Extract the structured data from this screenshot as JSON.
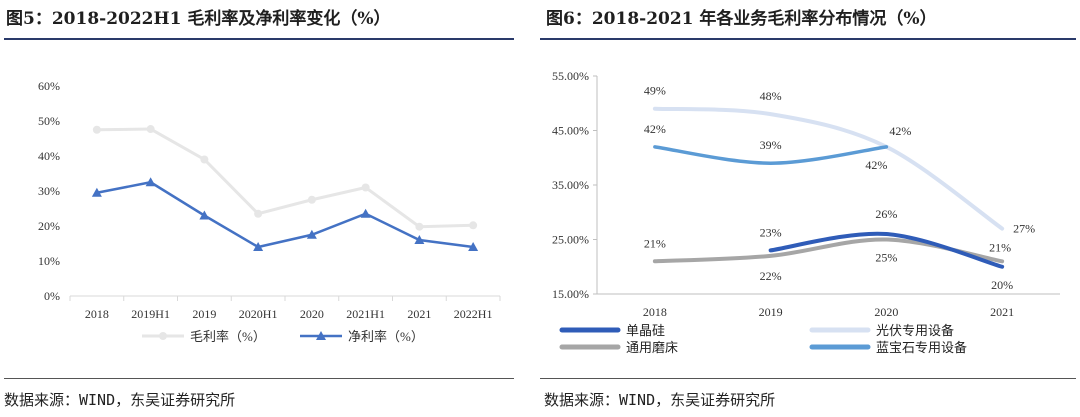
{
  "chart_data": [
    {
      "type": "line",
      "title": "图5：2018-2022H1 毛利率及净利率变化（%）",
      "categories": [
        "2018",
        "2019H1",
        "2019",
        "2020H1",
        "2020",
        "2021H1",
        "2021",
        "2022H1"
      ],
      "series": [
        {
          "name": "毛利率（%）",
          "values": [
            47.5,
            47.7,
            39.0,
            23.5,
            27.5,
            31.0,
            19.8,
            20.2
          ],
          "color": "#e6e6e6",
          "marker": "circle"
        },
        {
          "name": "净利率（%）",
          "values": [
            29.5,
            32.5,
            23.0,
            14.0,
            17.5,
            23.5,
            16.0,
            14.0
          ],
          "color": "#4472c4",
          "marker": "triangle"
        }
      ],
      "yticks": [
        "0%",
        "10%",
        "20%",
        "30%",
        "40%",
        "50%",
        "60%"
      ],
      "ylim": [
        0,
        60
      ],
      "legend": "bottom",
      "source": "数据来源：WIND，东吴证券研究所"
    },
    {
      "type": "line",
      "title": "图6：2018-2021 年各业务毛利率分布情况（%）",
      "categories": [
        "2018",
        "2019",
        "2020",
        "2021"
      ],
      "series": [
        {
          "name": "单晶硅",
          "values": [
            null,
            23,
            26,
            20
          ],
          "labels": [
            "",
            "23%",
            "26%",
            "20%"
          ],
          "color": "#2f5cb8"
        },
        {
          "name": "光伏专用设备",
          "values": [
            49,
            48,
            42,
            27
          ],
          "labels": [
            "49%",
            "48%",
            "42%",
            "27%"
          ],
          "color": "#d7e1f2"
        },
        {
          "name": "通用磨床",
          "values": [
            21,
            22,
            25,
            21
          ],
          "labels": [
            "21%",
            "22%",
            "25%",
            "21%"
          ],
          "color": "#a6a6a6"
        },
        {
          "name": "蓝宝石专用设备",
          "values": [
            42,
            39,
            42,
            null
          ],
          "labels": [
            "42%",
            "39%",
            "42%",
            ""
          ],
          "color": "#5b9bd5"
        }
      ],
      "yticks": [
        "15.00%",
        "25.00%",
        "35.00%",
        "45.00%",
        "55.00%"
      ],
      "ylim": [
        15,
        55
      ],
      "legend": "bottom",
      "source": "数据来源：WIND，东吴证券研究所"
    }
  ]
}
